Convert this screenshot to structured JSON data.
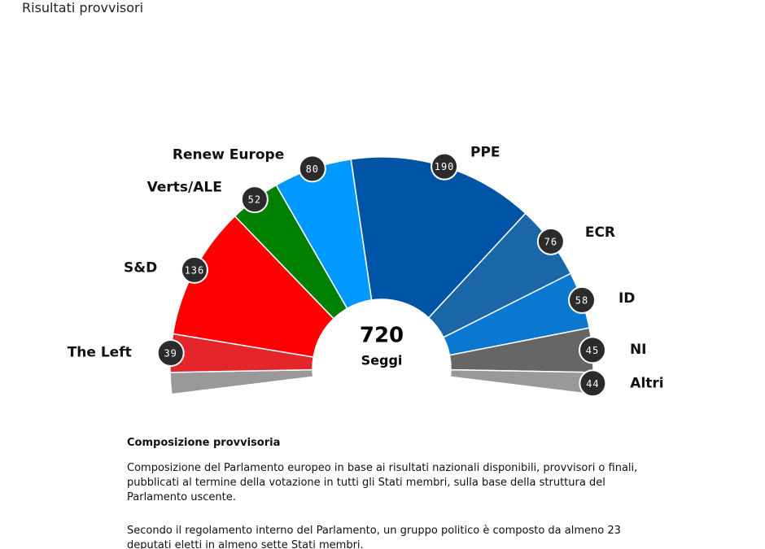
{
  "header": {
    "subtitle": "Risultati provvisori"
  },
  "chart_data": {
    "type": "hemicycle",
    "total": 720,
    "center_label": "Seggi",
    "categories": [
      "The Left",
      "S&D",
      "Verts/ALE",
      "Renew Europe",
      "PPE",
      "ECR",
      "ID",
      "NI",
      "Altri"
    ],
    "values": [
      39,
      136,
      52,
      80,
      190,
      76,
      58,
      45,
      44
    ],
    "colors": [
      "#e4262b",
      "#ff0000",
      "#008000",
      "#0099ff",
      "#0054a5",
      "#1a67a8",
      "#0a77d0",
      "#666666",
      "#999999"
    ]
  },
  "notes": {
    "title": "Composizione provvisoria",
    "paragraphs": [
      "Composizione del Parlamento europeo in base ai risultati nazionali disponibili, provvisori o finali, pubblicati al termine della votazione in tutti gli Stati membri, sulla base della struttura del Parlamento uscente.",
      "Secondo il regolamento interno del Parlamento, un gruppo politico è composto da almeno 23 deputati eletti in almeno sette Stati membri."
    ]
  }
}
